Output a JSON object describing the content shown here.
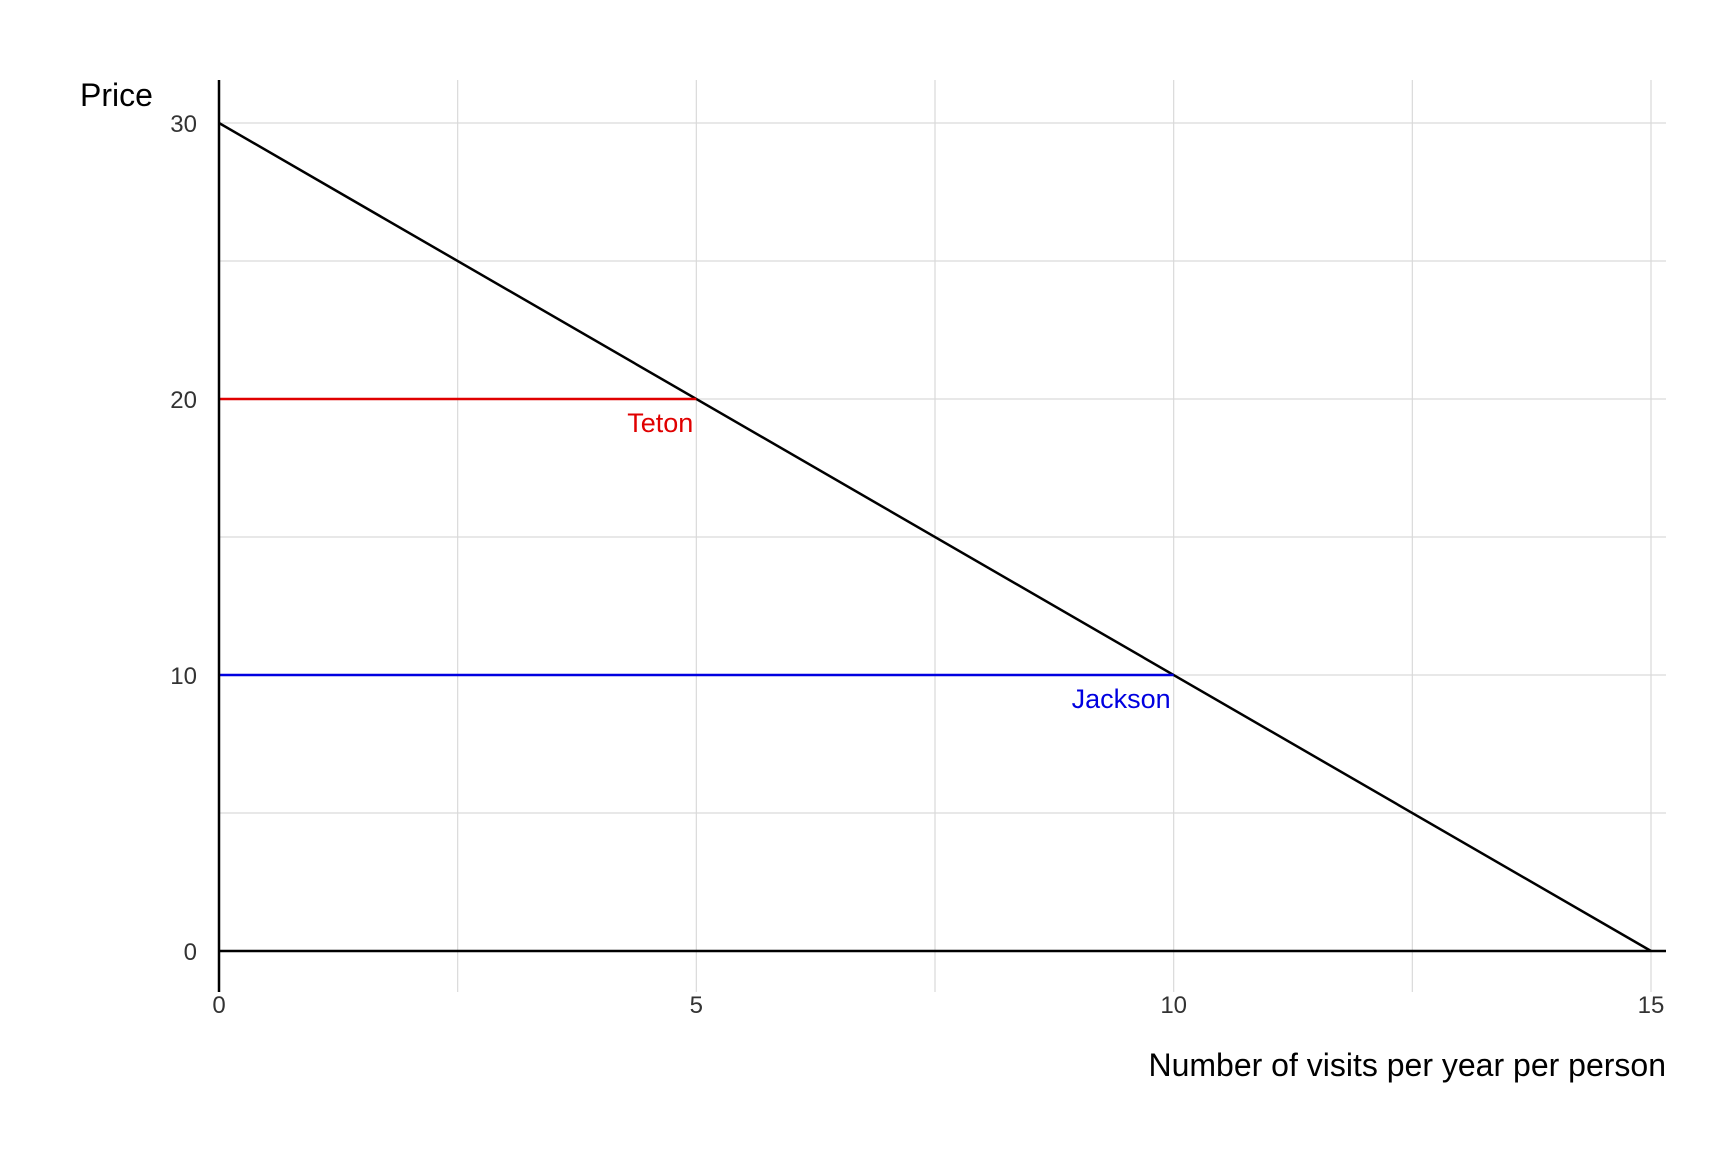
{
  "chart_data": {
    "type": "line",
    "title": "",
    "xlabel": "Number of visits per year per person",
    "ylabel": "Price",
    "xlim": [
      0,
      15
    ],
    "ylim": [
      0,
      30
    ],
    "x_ticks": [
      "0",
      "5",
      "10",
      "15"
    ],
    "y_ticks": [
      "0",
      "10",
      "20",
      "30"
    ],
    "grid": true,
    "legend": "none",
    "series": [
      {
        "points": [
          [
            0,
            30
          ],
          [
            15,
            0
          ]
        ],
        "color": "#000000"
      },
      {
        "points": [
          [
            0,
            20
          ],
          [
            5,
            20
          ]
        ],
        "color": "#e00000"
      },
      {
        "points": [
          [
            0,
            10
          ],
          [
            10,
            10
          ]
        ],
        "color": "#0000e0"
      }
    ],
    "annotations": [
      {
        "text": "Teton",
        "x": 5,
        "y": 20,
        "color": "#e00000"
      },
      {
        "text": "Jackson",
        "x": 10,
        "y": 10,
        "color": "#0000e0"
      }
    ]
  }
}
